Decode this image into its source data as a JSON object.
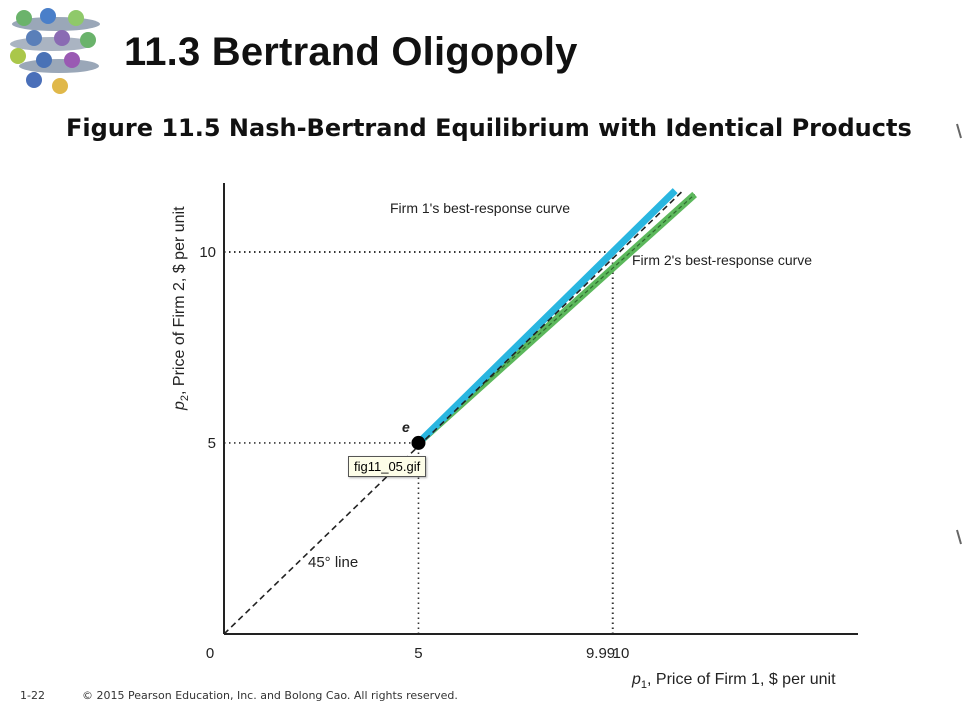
{
  "slide": {
    "title": "11.3 Bertrand Oligopoly",
    "figure_title": "Figure 11.5 Nash-Bertrand Equilibrium with Identical Products",
    "page_number": "1-22",
    "copyright": "© 2015 Pearson Education, Inc. and Bolong Cao. All rights reserved.",
    "tooltip": "fig11_05.gif"
  },
  "colors": {
    "firm1_curve": "#29b6e0",
    "firm2_curve": "#5cb85c",
    "axis": "#222222",
    "equilibrium": "#000000"
  },
  "chart_data": {
    "type": "line",
    "xlabel_var": "p",
    "xlabel_sub": "1",
    "xlabel_rest": ", Price of Firm 1, $ per unit",
    "ylabel_var": "p",
    "ylabel_sub": "2",
    "ylabel_rest": ", Price of Firm 2, $ per unit",
    "origin_label": "0",
    "x_ticks": [
      {
        "value": 5,
        "label": "5"
      },
      {
        "value": 9.99,
        "label": "9.99"
      },
      {
        "value": 10,
        "label": "10"
      }
    ],
    "y_ticks": [
      {
        "value": 5,
        "label": "5"
      },
      {
        "value": 10,
        "label": "10"
      }
    ],
    "xlim": [
      0,
      16.3
    ],
    "ylim": [
      0,
      11.8
    ],
    "series": [
      {
        "name": "Firm 1's best-response curve",
        "x": [
          5,
          11.6
        ],
        "y": [
          5,
          11.6
        ]
      },
      {
        "name": "Firm 2's best-response curve",
        "x": [
          5,
          12.1
        ],
        "y": [
          5,
          11.5
        ]
      }
    ],
    "reference_line": {
      "label": "45° line",
      "x": [
        0,
        11.8
      ],
      "y": [
        0,
        11.6
      ]
    },
    "equilibrium": {
      "label": "e",
      "x": 5,
      "y": 5
    },
    "dotted_guides": [
      {
        "x": 5,
        "y": 5
      },
      {
        "x": 9.99,
        "y": 10
      },
      {
        "x": 10,
        "y": 9.99
      }
    ]
  }
}
